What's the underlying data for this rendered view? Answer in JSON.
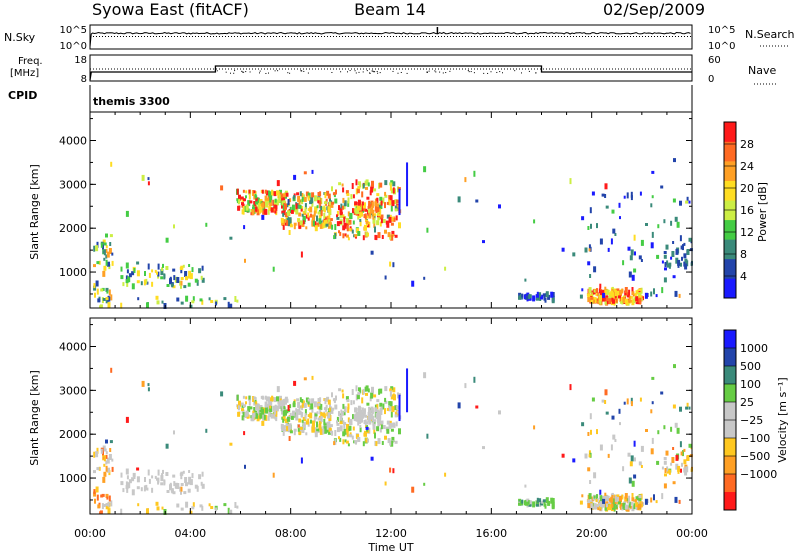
{
  "header": {
    "title_left": "Syowa East (fitACF)",
    "title_center": "Beam 14",
    "title_right": "02/Sep/2009"
  },
  "panels": {
    "nsky_label": "N.Sky",
    "nsky_ticks": [
      "10^5",
      "10^0"
    ],
    "nsearch_label": "N.Search",
    "nsearch_ticks": [
      "10^5",
      "10^0"
    ],
    "freq_label_line1": "Freq.",
    "freq_label_line2": "[MHz]",
    "freq_ticks": [
      "18",
      "8"
    ],
    "nave_label": "Nave",
    "nave_ticks": [
      "60",
      "0"
    ],
    "cpid_label": "CPID",
    "cpid_value": "themis 3300"
  },
  "colors": {
    "power": [
      "#1a1aff",
      "#2244aa",
      "#3a8a7a",
      "#44cc44",
      "#ccee44",
      "#ffdd22",
      "#ffa024",
      "#ff6a22",
      "#ff1a1a"
    ],
    "velocity": [
      "#ff1a1a",
      "#ff6a22",
      "#ffa024",
      "#ffc820",
      "#c8c8c8",
      "#c8c8c8",
      "#66cc44",
      "#3a8a7a",
      "#2244aa",
      "#1a1aff"
    ]
  },
  "chart_data": [
    {
      "type": "heatmap",
      "name": "power",
      "ylabel": "Slant Range [km]",
      "ylim": [
        180,
        4650
      ],
      "y_ticks": [
        "1000",
        "2000",
        "3000",
        "4000"
      ],
      "x_ticks": [
        "00:00",
        "04:00",
        "08:00",
        "12:00",
        "16:00",
        "20:00",
        "00:00"
      ],
      "xlim_hours": [
        0,
        24
      ],
      "colorbar_label": "Power [dB]",
      "colorbar_ticks": [
        "4",
        "8",
        "12",
        "16",
        "20",
        "24",
        "28"
      ],
      "colorbar_range": [
        0,
        32
      ]
    },
    {
      "type": "heatmap",
      "name": "velocity",
      "ylabel": "Slant Range [km]",
      "ylim": [
        180,
        4650
      ],
      "y_ticks": [
        "1000",
        "2000",
        "3000",
        "4000"
      ],
      "x_ticks": [
        "00:00",
        "04:00",
        "08:00",
        "12:00",
        "16:00",
        "20:00",
        "00:00"
      ],
      "xlabel": "Time UT",
      "colorbar_label": "Velocity [m s⁻¹]",
      "colorbar_ticks": [
        "1000",
        "500",
        "100",
        "25",
        "−25",
        "−100",
        "−500",
        "−1000"
      ]
    }
  ],
  "scatter_regions": [
    {
      "t": [
        5.8,
        7.6
      ],
      "r": [
        2350,
        2850
      ],
      "n": 120,
      "pw": [
        3,
        9
      ],
      "v": [
        3,
        6
      ]
    },
    {
      "t": [
        7.6,
        9.6
      ],
      "r": [
        2000,
        2800
      ],
      "n": 200,
      "pw": [
        2,
        8
      ],
      "v": [
        3,
        6
      ]
    },
    {
      "t": [
        9.6,
        12.3
      ],
      "r": [
        1750,
        3050
      ],
      "n": 200,
      "pw": [
        2,
        9
      ],
      "v": [
        3,
        6
      ]
    },
    {
      "t": [
        10.5,
        11.6
      ],
      "r": [
        2250,
        2600
      ],
      "n": 60,
      "pw": [
        4,
        8
      ],
      "v": [
        4,
        5
      ]
    },
    {
      "t": [
        0.1,
        0.9
      ],
      "r": [
        200,
        1700
      ],
      "n": 45,
      "pw": [
        1,
        6
      ],
      "v": [
        1,
        5
      ]
    },
    {
      "t": [
        1.2,
        4.5
      ],
      "r": [
        650,
        1150
      ],
      "n": 70,
      "pw": [
        1,
        5
      ],
      "v": [
        4,
        5
      ]
    },
    {
      "t": [
        0.2,
        6.0
      ],
      "r": [
        220,
        420
      ],
      "n": 30,
      "pw": [
        1,
        5
      ],
      "v": [
        3,
        6
      ]
    },
    {
      "t": [
        17.0,
        18.5
      ],
      "r": [
        350,
        500
      ],
      "n": 40,
      "pw": [
        0,
        2
      ],
      "v": [
        5,
        7
      ]
    },
    {
      "t": [
        19.8,
        22.0
      ],
      "r": [
        300,
        600
      ],
      "n": 180,
      "pw": [
        4,
        8
      ],
      "v": [
        2,
        6
      ]
    },
    {
      "t": [
        22.8,
        24.0
      ],
      "r": [
        1100,
        1700
      ],
      "n": 30,
      "pw": [
        1,
        2
      ],
      "v": [
        0,
        6
      ]
    },
    {
      "t": [
        19.5,
        24.0
      ],
      "r": [
        400,
        3000
      ],
      "n": 70,
      "pw": [
        0,
        3
      ],
      "v": [
        2,
        8
      ]
    },
    {
      "t": [
        0.0,
        24.0
      ],
      "r": [
        300,
        3600
      ],
      "n": 60,
      "pw": [
        0,
        8
      ],
      "v": [
        0,
        9
      ]
    }
  ]
}
